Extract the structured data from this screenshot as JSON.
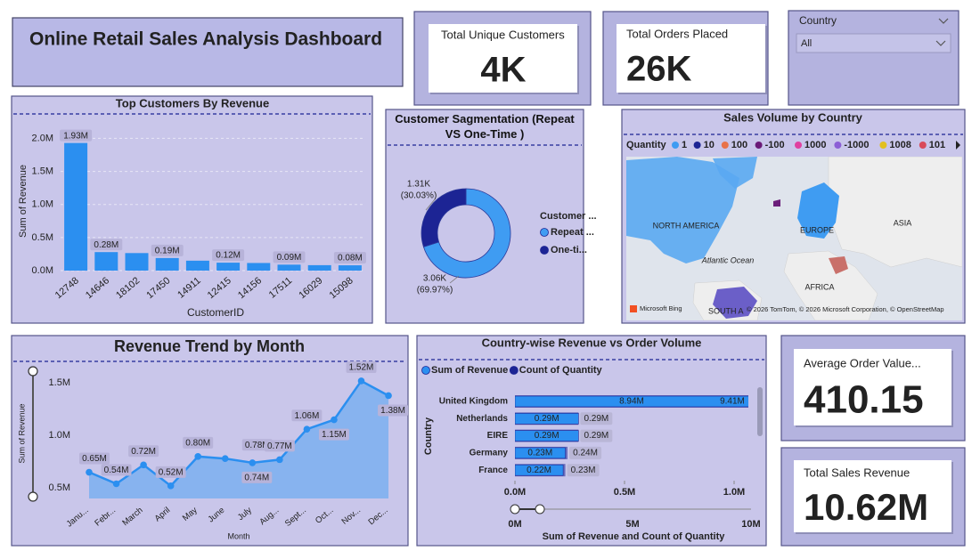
{
  "header": {
    "title": "Online Retail Sales Analysis Dashboard"
  },
  "cards": [
    {
      "label": "Total Unique Customers",
      "value": "4K"
    },
    {
      "label": "Total Orders Placed",
      "value": "26K"
    },
    {
      "label": "Average Order Value...",
      "value": "410.15"
    },
    {
      "label": "Total Sales Revenue",
      "value": "10.62M"
    }
  ],
  "slicer": {
    "label": "Country",
    "value": "All"
  },
  "map": {
    "title": "Sales Volume by Country",
    "legend_title": "Quantity",
    "legend": [
      {
        "name": "1",
        "color": "#3f9cf2"
      },
      {
        "name": "10",
        "color": "#1c2494"
      },
      {
        "name": "100",
        "color": "#e8724a"
      },
      {
        "name": "-100",
        "color": "#6a1a78"
      },
      {
        "name": "1000",
        "color": "#e040a0"
      },
      {
        "name": "-1000",
        "color": "#8c5fd6"
      },
      {
        "name": "1008",
        "color": "#e2c020"
      },
      {
        "name": "101",
        "color": "#d94a5a"
      }
    ],
    "labels": [
      "NORTH AMERICA",
      "EUROPE",
      "ASIA",
      "Atlantic Ocean",
      "AFRICA",
      "SOUTH A"
    ],
    "logo": "Microsoft Bing",
    "attribution": "© 2026 TomTom, © 2026 Microsoft Corporation, © OpenStreetMap"
  },
  "chart_data": [
    {
      "type": "bar",
      "title": "Top Customers By Revenue",
      "x_label": "CustomerID",
      "y_label": "Sum of Revenue",
      "categories": [
        "12748",
        "14646",
        "18102",
        "17450",
        "14911",
        "12415",
        "14156",
        "17511",
        "16029",
        "15098"
      ],
      "values": [
        1930000,
        280000,
        265000,
        190000,
        150000,
        120000,
        115000,
        90000,
        82000,
        80000
      ],
      "value_labels": [
        "1.93M",
        "0.28M",
        null,
        "0.19M",
        null,
        "0.12M",
        null,
        "0.09M",
        null,
        "0.08M"
      ],
      "color": "#2b8ff0",
      "ylim": [
        0,
        2100000
      ],
      "yticks": [
        {
          "value": 0,
          "label": "0.0M"
        },
        {
          "value": 500000,
          "label": "0.5M"
        },
        {
          "value": 1000000,
          "label": "1.0M"
        },
        {
          "value": 1500000,
          "label": "1.5M"
        },
        {
          "value": 2000000,
          "label": "2.0M"
        }
      ],
      "grid": true
    },
    {
      "type": "donut",
      "title": "Customer Sagmentation (Repeat VS One-Time )",
      "legend_title": "Customer ...",
      "categories": [
        "Repeat ...",
        "One-ti..."
      ],
      "values": [
        3060,
        1310
      ],
      "value_labels": [
        "3.06K",
        "1.31K"
      ],
      "percents": [
        69.97,
        30.03
      ],
      "percent_labels": [
        "(69.97%)",
        "(30.03%)"
      ],
      "colors": [
        "#3f9cf2",
        "#1c2494"
      ]
    },
    {
      "type": "area",
      "title": "Revenue Trend by Month",
      "x_label": "Month",
      "y_label": "Sum of Revenue",
      "categories": [
        "Janu...",
        "Febr...",
        "March",
        "April",
        "May",
        "June",
        "July",
        "Aug...",
        "Sept...",
        "Oct...",
        "Nov...",
        "Dec..."
      ],
      "values": [
        650000,
        540000,
        720000,
        520000,
        800000,
        780000,
        740000,
        770000,
        1060000,
        1150000,
        1520000,
        1380000
      ],
      "value_labels": [
        "0.65M",
        "0.54M",
        "0.72M",
        "0.52M",
        "0.80M",
        "0.78M",
        "0.74M",
        "0.77M",
        "1.06M",
        "1.15M",
        "1.52M",
        "1.38M"
      ],
      "color": "#2b8ff0",
      "ylim": [
        400000,
        1630000
      ],
      "yticks": [
        {
          "value": 500000,
          "label": "0.5M"
        },
        {
          "value": 1000000,
          "label": "1.0M"
        },
        {
          "value": 1500000,
          "label": "1.5M"
        }
      ],
      "grid": false
    },
    {
      "type": "hbar",
      "title": "Country-wise Revenue vs Order Volume",
      "x_label": "Sum of Revenue and Count of Quantity",
      "y_label": "Country",
      "categories": [
        "United Kingdom",
        "Netherlands",
        "EIRE",
        "Germany",
        "France"
      ],
      "series": [
        {
          "name": "Sum of Revenue",
          "color": "#2b8ff0",
          "values": [
            8940000,
            290000,
            290000,
            230000,
            220000
          ],
          "value_labels": [
            "8.94M",
            "0.29M",
            "0.29M",
            "0.23M",
            "0.22M"
          ]
        },
        {
          "name": "Count of Quantity",
          "color": "#1c2494",
          "values": [
            9410000,
            290000,
            290000,
            240000,
            230000
          ],
          "value_labels": [
            "9.41M",
            "0.29M",
            "0.29M",
            "0.24M",
            "0.23M"
          ]
        }
      ],
      "xlim": [
        0,
        1065000
      ],
      "xticks": [
        {
          "value": 0,
          "label": "0.0M"
        },
        {
          "value": 500000,
          "label": "0.5M"
        },
        {
          "value": 1000000,
          "label": "1.0M"
        }
      ],
      "range_labels": [
        "0M",
        "5M",
        "10M"
      ]
    }
  ]
}
